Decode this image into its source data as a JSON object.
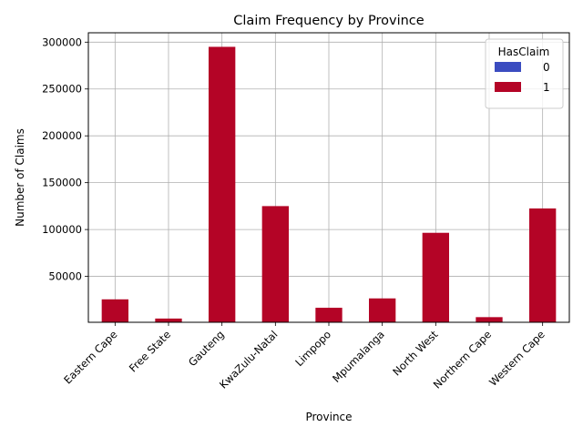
{
  "chart_data": {
    "type": "bar",
    "title": "Claim Frequency by Province",
    "xlabel": "Province",
    "ylabel": "Number of Claims",
    "categories": [
      "Eastern Cape",
      "Free State",
      "Gauteng",
      "KwaZulu-Natal",
      "Limpopo",
      "Mpumalanga",
      "North West",
      "Northern Cape",
      "Western Cape"
    ],
    "series": [
      {
        "name": "0",
        "color": "#3b4cc0",
        "values": [
          0,
          0,
          0,
          0,
          0,
          0,
          0,
          0,
          0
        ]
      },
      {
        "name": "1",
        "color": "#b40426",
        "values": [
          25500,
          5000,
          295000,
          125000,
          16500,
          26500,
          96500,
          6500,
          122500
        ]
      }
    ],
    "ylim": [
      1000,
      310000
    ],
    "yticks": [
      50000,
      100000,
      150000,
      200000,
      250000,
      300000
    ],
    "ytick_labels": [
      "50000",
      "100000",
      "150000",
      "200000",
      "250000",
      "300000"
    ],
    "grid": true,
    "stacked": true,
    "legend": {
      "title": "HasClaim",
      "position": "top-right"
    }
  }
}
